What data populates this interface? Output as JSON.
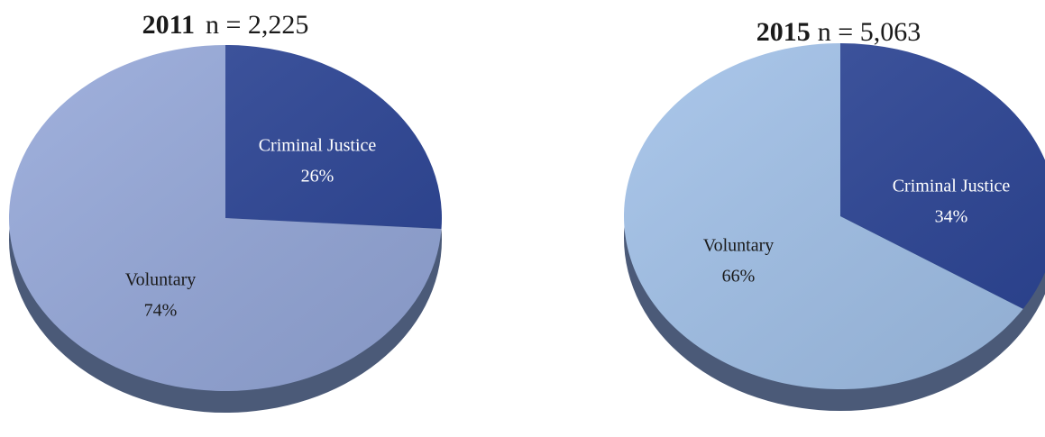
{
  "chart_data": [
    {
      "type": "pie",
      "title": "2011",
      "subtitle": "n = 2,225",
      "categories": [
        "Criminal Justice",
        "Voluntary"
      ],
      "values": [
        26,
        74
      ],
      "value_labels": [
        "26%",
        "74%"
      ],
      "colors": [
        "#2b4496",
        "#94a7d9"
      ]
    },
    {
      "type": "pie",
      "title": "2015",
      "subtitle": "n = 5,063",
      "categories": [
        "Criminal Justice",
        "Voluntary"
      ],
      "values": [
        34,
        66
      ],
      "value_labels": [
        "34%",
        "66%"
      ],
      "colors": [
        "#2b4496",
        "#a0c0e8"
      ]
    }
  ]
}
